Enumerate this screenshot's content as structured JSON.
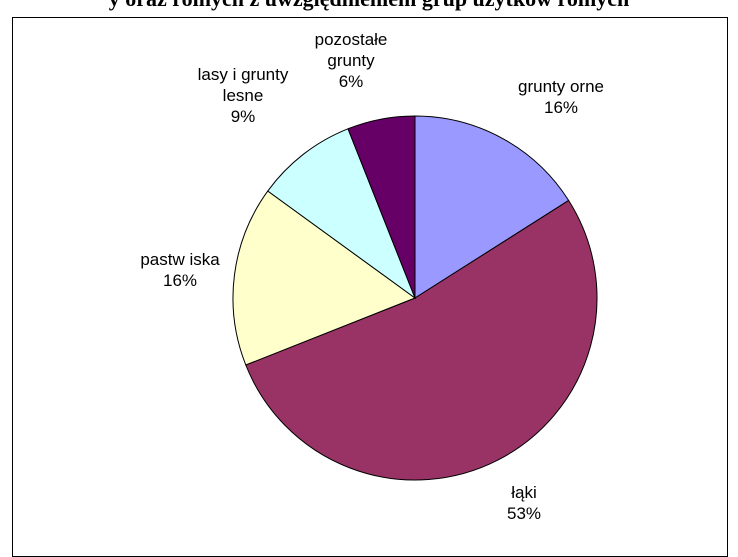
{
  "caption": "y oraz rolnych z uwzględnieniem grup użytków rolnych",
  "chart_data": {
    "type": "pie",
    "title": "",
    "slices": [
      {
        "label_lines": [
          "grunty orne"
        ],
        "pct_text": "16%",
        "value": 16,
        "color": "#9999ff"
      },
      {
        "label_lines": [
          "łąki"
        ],
        "pct_text": "53%",
        "value": 53,
        "color": "#993366"
      },
      {
        "label_lines": [
          "pastw iska"
        ],
        "pct_text": "16%",
        "value": 16,
        "color": "#ffffcc"
      },
      {
        "label_lines": [
          "lasy i grunty",
          "lesne"
        ],
        "pct_text": "9%",
        "value": 9,
        "color": "#ccffff"
      },
      {
        "label_lines": [
          "pozostałe",
          "grunty"
        ],
        "pct_text": "6%",
        "value": 6,
        "color": "#660066"
      }
    ],
    "start": "12 o'clock",
    "direction": "clockwise"
  }
}
